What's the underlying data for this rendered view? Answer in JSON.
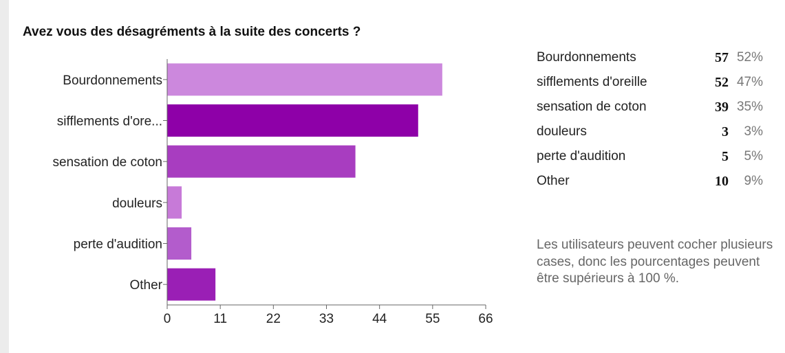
{
  "chart_data": {
    "type": "bar",
    "orientation": "horizontal",
    "title": "Avez vous des désagréments à la suite des concerts ?",
    "categories": [
      "Bourdonnements",
      "sifflements d'ore...",
      "sensation de coton",
      "douleurs",
      "perte d'audition",
      "Other"
    ],
    "values": [
      57,
      52,
      39,
      3,
      5,
      10
    ],
    "colors": [
      "#cc88dd",
      "#8e00a8",
      "#a83dc0",
      "#c77ad8",
      "#b35ccc",
      "#9a1fb5"
    ],
    "xlim": [
      0,
      66
    ],
    "xticks": [
      "0",
      "11",
      "22",
      "33",
      "44",
      "55",
      "66"
    ],
    "grid": false
  },
  "summary": {
    "rows": [
      {
        "label": "Bourdonnements",
        "count": "57",
        "percent": "52%"
      },
      {
        "label": "sifflements d'oreille",
        "count": "52",
        "percent": "47%"
      },
      {
        "label": "sensation de coton",
        "count": "39",
        "percent": "35%"
      },
      {
        "label": "douleurs",
        "count": "3",
        "percent": "3%"
      },
      {
        "label": "perte d'audition",
        "count": "5",
        "percent": "5%"
      },
      {
        "label": "Other",
        "count": "10",
        "percent": "9%"
      }
    ],
    "note": "Les utilisateurs peuvent cocher plusieurs cases, donc les pourcentages peuvent être supérieurs à 100 %."
  }
}
